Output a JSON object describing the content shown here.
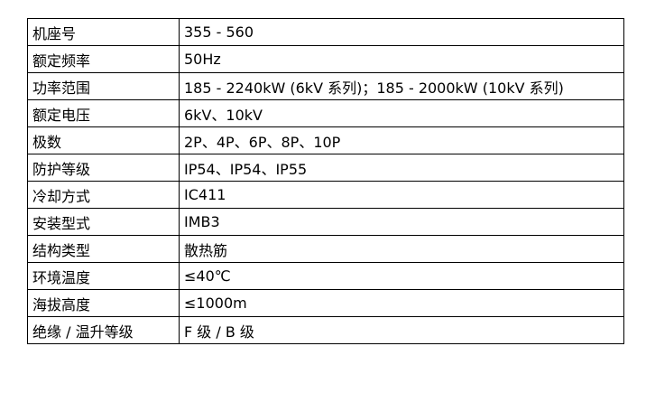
{
  "rows": [
    {
      "label": "机座号",
      "value": "355 - 560"
    },
    {
      "label": "额定频率",
      "value": "50Hz"
    },
    {
      "label": "功率范围",
      "value": "185 - 2240kW (6kV 系列)；185 - 2000kW (10kV 系列)"
    },
    {
      "label": "额定电压",
      "value": "6kV、10kV"
    },
    {
      "label": "极数",
      "value": "2P、4P、6P、8P、10P"
    },
    {
      "label": "防护等级",
      "value": "IP54、IP54、IP55"
    },
    {
      "label": "冷却方式",
      "value": "IC411"
    },
    {
      "label": "安装型式",
      "value": "IMB3"
    },
    {
      "label": "结构类型",
      "value": "散热筋"
    },
    {
      "label": "环境温度",
      "value": "≤40℃"
    },
    {
      "label": "海拔高度",
      "value": "≤1000m"
    },
    {
      "label": "绝缘 / 温升等级",
      "value": "F 级 / B 级"
    }
  ]
}
